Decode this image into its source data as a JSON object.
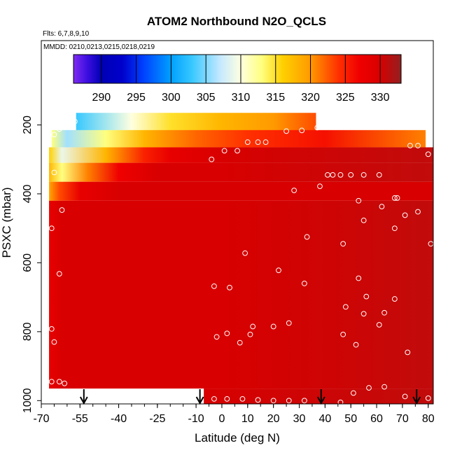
{
  "chart_data": {
    "type": "heatmap",
    "title": "ATOM2 Northbound N2O_QCLS",
    "flights_label": "Flts: 6,7,8,9,10",
    "dates_label": "MMDD: 0210,0213,0215,0218,0219",
    "xlabel": "Latitude (deg N)",
    "ylabel": "PSXC (mbar)",
    "xlim": [
      -70,
      82
    ],
    "ylim": [
      1010,
      0
    ],
    "x_ticks": [
      -70,
      -55,
      -40,
      -25,
      -10,
      0,
      10,
      20,
      30,
      40,
      50,
      60,
      70,
      80
    ],
    "y_ticks": [
      200,
      400,
      600,
      800,
      1000
    ],
    "colorbar": {
      "min": 286,
      "max": 333,
      "ticks": [
        290,
        295,
        300,
        305,
        310,
        315,
        320,
        325,
        330
      ],
      "stops": [
        {
          "v": 286,
          "c": "#7f2cf0"
        },
        {
          "v": 288,
          "c": "#3b0ee0"
        },
        {
          "v": 290,
          "c": "#0000b4"
        },
        {
          "v": 293,
          "c": "#0000cc"
        },
        {
          "v": 296,
          "c": "#0040ff"
        },
        {
          "v": 300,
          "c": "#00a0ff"
        },
        {
          "v": 303,
          "c": "#38c8ff"
        },
        {
          "v": 307,
          "c": "#c4e8ff"
        },
        {
          "v": 310,
          "c": "#ffffe0"
        },
        {
          "v": 313,
          "c": "#ffff80"
        },
        {
          "v": 316,
          "c": "#ffd000"
        },
        {
          "v": 320,
          "c": "#ff9a00"
        },
        {
          "v": 324,
          "c": "#ff3000"
        },
        {
          "v": 327,
          "c": "#f00000"
        },
        {
          "v": 330,
          "c": "#d80000"
        },
        {
          "v": 333,
          "c": "#922020"
        }
      ]
    },
    "fields": [
      {
        "lat_range": [
          -56.5,
          36.5
        ],
        "p_range": [
          165,
          220
        ],
        "n2o_by_lat": [
          [
            -56.5,
            303
          ],
          [
            -35,
            310
          ],
          [
            -20,
            315
          ],
          [
            0,
            318
          ],
          [
            20,
            320
          ],
          [
            36.5,
            323
          ]
        ]
      },
      {
        "lat_range": [
          -66,
          79
        ],
        "p_range": [
          215,
          265
        ],
        "n2o_by_lat": [
          [
            -66,
            313
          ],
          [
            -60,
            306
          ],
          [
            -45,
            313
          ],
          [
            -30,
            318
          ],
          [
            -10,
            322
          ],
          [
            10,
            324
          ],
          [
            40,
            326
          ],
          [
            79,
            321
          ]
        ]
      },
      {
        "lat_range": [
          -67,
          82
        ],
        "p_range": [
          265,
          310
        ],
        "n2o_by_lat": [
          [
            -67,
            316
          ],
          [
            -62,
            309
          ],
          [
            -45,
            318
          ],
          [
            -30,
            325
          ],
          [
            -20,
            328
          ],
          [
            0,
            330
          ],
          [
            82,
            331
          ]
        ]
      },
      {
        "lat_range": [
          -67,
          82
        ],
        "p_range": [
          310,
          365
        ],
        "n2o_by_lat": [
          [
            -67,
            318
          ],
          [
            -62,
            313
          ],
          [
            -52,
            321
          ],
          [
            -40,
            327
          ],
          [
            -25,
            330
          ],
          [
            0,
            330
          ],
          [
            82,
            331
          ]
        ]
      },
      {
        "lat_range": [
          -67,
          82
        ],
        "p_range": [
          365,
          420
        ],
        "n2o_by_lat": [
          [
            -67,
            319
          ],
          [
            -63,
            323
          ],
          [
            -55,
            328
          ],
          [
            -40,
            330
          ],
          [
            82,
            330
          ]
        ]
      },
      {
        "lat_range": [
          -67,
          82
        ],
        "p_range": [
          420,
          965
        ],
        "n2o_by_lat": [
          [
            -67,
            328
          ],
          [
            -62,
            330
          ],
          [
            0,
            330
          ],
          [
            50,
            330.5
          ],
          [
            82,
            331
          ]
        ]
      },
      {
        "lat_range": [
          -7,
          82
        ],
        "p_range": [
          965,
          1010
        ],
        "n2o_by_lat": [
          [
            -7,
            330
          ],
          [
            82,
            331
          ]
        ]
      }
    ],
    "samples": [
      [
        -59,
        190
      ],
      [
        -57,
        190
      ],
      [
        -61,
        198
      ],
      [
        -63,
        212
      ],
      [
        -65,
        228
      ],
      [
        -65,
        338
      ],
      [
        -62,
        447
      ],
      [
        -66,
        500
      ],
      [
        -63,
        632
      ],
      [
        -66,
        792
      ],
      [
        -65,
        830
      ],
      [
        -66,
        945
      ],
      [
        -63,
        945
      ],
      [
        -61,
        950
      ],
      [
        -4,
        300
      ],
      [
        1,
        275
      ],
      [
        6,
        275
      ],
      [
        10,
        250
      ],
      [
        14,
        250
      ],
      [
        17,
        250
      ],
      [
        25,
        218
      ],
      [
        31,
        216
      ],
      [
        37,
        208
      ],
      [
        28,
        390
      ],
      [
        38,
        378
      ],
      [
        41,
        345
      ],
      [
        43,
        345
      ],
      [
        46,
        345
      ],
      [
        50,
        345
      ],
      [
        55,
        345
      ],
      [
        61,
        345
      ],
      [
        53,
        420
      ],
      [
        55,
        477
      ],
      [
        62,
        437
      ],
      [
        67,
        412
      ],
      [
        68,
        412
      ],
      [
        71,
        462
      ],
      [
        73,
        260
      ],
      [
        76,
        260
      ],
      [
        80,
        285
      ],
      [
        81,
        545
      ],
      [
        76,
        452
      ],
      [
        67,
        500
      ],
      [
        47,
        545
      ],
      [
        33,
        525
      ],
      [
        9,
        572
      ],
      [
        22,
        622
      ],
      [
        32,
        660
      ],
      [
        -3,
        668
      ],
      [
        3,
        672
      ],
      [
        53,
        645
      ],
      [
        56,
        698
      ],
      [
        48,
        728
      ],
      [
        55,
        748
      ],
      [
        63,
        745
      ],
      [
        67,
        705
      ],
      [
        61,
        780
      ],
      [
        26,
        775
      ],
      [
        20,
        785
      ],
      [
        12,
        785
      ],
      [
        11,
        808
      ],
      [
        2,
        805
      ],
      [
        -2,
        815
      ],
      [
        7,
        832
      ],
      [
        47,
        808
      ],
      [
        52,
        838
      ],
      [
        72,
        860
      ],
      [
        -3,
        995
      ],
      [
        2,
        995
      ],
      [
        8,
        995
      ],
      [
        14,
        998
      ],
      [
        20,
        1000
      ],
      [
        26,
        1000
      ],
      [
        32,
        1000
      ],
      [
        46,
        1005
      ],
      [
        51,
        978
      ],
      [
        57,
        963
      ],
      [
        63,
        960
      ],
      [
        71,
        988
      ],
      [
        80,
        993
      ]
    ],
    "markers": [
      -53.5,
      -8.5,
      38.5,
      75.5
    ]
  }
}
